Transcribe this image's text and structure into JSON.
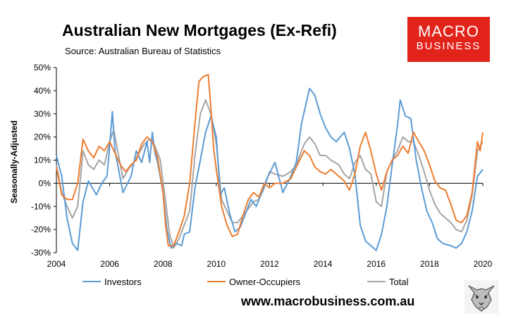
{
  "header": {
    "title": "Australian New Mortgages (Ex-Refi)",
    "source": "Source: Australian Bureau of Statistics",
    "logo_line1": "MACRO",
    "logo_line2": "BUSINESS",
    "url": "www.macrobusiness.com.au"
  },
  "colors": {
    "investors": "#5b9bd5",
    "owner_occupiers": "#ed7d31",
    "total": "#a5a5a5",
    "brand": "#e2231a"
  },
  "icons": [
    "wolf-logo-icon"
  ],
  "chart_data": {
    "type": "line",
    "title": "Australian New Mortgages (Ex-Refi)",
    "ylabel": "Seasonally-Adjusted",
    "xlabel": "",
    "xlim": [
      2004,
      2020
    ],
    "ylim": [
      -30,
      50
    ],
    "grid": false,
    "legend_position": "bottom",
    "x_ticks": [
      "2004",
      "2006",
      "2008",
      "2010",
      "2012",
      "2014",
      "2016",
      "2018",
      "2020"
    ],
    "y_ticks": [
      "-30%",
      "-20%",
      "-10%",
      "0%",
      "10%",
      "20%",
      "30%",
      "40%",
      "50%"
    ],
    "series": [
      {
        "name": "Investors",
        "points": [
          [
            2004.0,
            12
          ],
          [
            2004.2,
            3
          ],
          [
            2004.4,
            -15
          ],
          [
            2004.6,
            -26
          ],
          [
            2004.8,
            -29
          ],
          [
            2005.0,
            -8
          ],
          [
            2005.2,
            1
          ],
          [
            2005.5,
            -5
          ],
          [
            2005.7,
            0
          ],
          [
            2005.9,
            3
          ],
          [
            2006.0,
            16
          ],
          [
            2006.1,
            31
          ],
          [
            2006.2,
            14
          ],
          [
            2006.5,
            -4
          ],
          [
            2006.8,
            3
          ],
          [
            2007.0,
            14
          ],
          [
            2007.2,
            9
          ],
          [
            2007.4,
            18
          ],
          [
            2007.5,
            9
          ],
          [
            2007.6,
            22
          ],
          [
            2007.7,
            13
          ],
          [
            2007.8,
            9
          ],
          [
            2008.0,
            -4
          ],
          [
            2008.15,
            -20
          ],
          [
            2008.3,
            -28
          ],
          [
            2008.5,
            -26
          ],
          [
            2008.7,
            -27
          ],
          [
            2008.8,
            -22
          ],
          [
            2009.0,
            -21
          ],
          [
            2009.2,
            -2
          ],
          [
            2009.4,
            10
          ],
          [
            2009.6,
            22
          ],
          [
            2009.8,
            29
          ],
          [
            2010.0,
            20
          ],
          [
            2010.15,
            -5
          ],
          [
            2010.3,
            -2
          ],
          [
            2010.5,
            -13
          ],
          [
            2010.7,
            -21
          ],
          [
            2010.9,
            -19
          ],
          [
            2011.1,
            -13
          ],
          [
            2011.3,
            -7
          ],
          [
            2011.5,
            -10
          ],
          [
            2011.7,
            -4
          ],
          [
            2011.9,
            2
          ],
          [
            2012.2,
            9
          ],
          [
            2012.5,
            -4
          ],
          [
            2012.8,
            3
          ],
          [
            2013.0,
            9
          ],
          [
            2013.2,
            26
          ],
          [
            2013.4,
            36
          ],
          [
            2013.5,
            41
          ],
          [
            2013.7,
            38
          ],
          [
            2013.9,
            30
          ],
          [
            2014.1,
            24
          ],
          [
            2014.3,
            20
          ],
          [
            2014.5,
            18
          ],
          [
            2014.8,
            22
          ],
          [
            2015.0,
            15
          ],
          [
            2015.2,
            4
          ],
          [
            2015.4,
            -18
          ],
          [
            2015.6,
            -25
          ],
          [
            2015.8,
            -27
          ],
          [
            2016.0,
            -29
          ],
          [
            2016.2,
            -22
          ],
          [
            2016.4,
            -10
          ],
          [
            2016.6,
            8
          ],
          [
            2016.8,
            25
          ],
          [
            2016.9,
            36
          ],
          [
            2017.1,
            29
          ],
          [
            2017.3,
            28
          ],
          [
            2017.5,
            10
          ],
          [
            2017.7,
            -2
          ],
          [
            2017.9,
            -12
          ],
          [
            2018.1,
            -17
          ],
          [
            2018.3,
            -24
          ],
          [
            2018.5,
            -26
          ],
          [
            2018.8,
            -27
          ],
          [
            2019.0,
            -28
          ],
          [
            2019.2,
            -26
          ],
          [
            2019.4,
            -21
          ],
          [
            2019.6,
            -12
          ],
          [
            2019.8,
            3
          ],
          [
            2020.0,
            6
          ]
        ]
      },
      {
        "name": "Owner-Occupiers",
        "points": [
          [
            2004.0,
            7
          ],
          [
            2004.2,
            -5
          ],
          [
            2004.4,
            -7
          ],
          [
            2004.6,
            -7
          ],
          [
            2004.8,
            0
          ],
          [
            2005.0,
            19
          ],
          [
            2005.2,
            14
          ],
          [
            2005.4,
            11
          ],
          [
            2005.6,
            16
          ],
          [
            2005.8,
            14
          ],
          [
            2006.0,
            18
          ],
          [
            2006.2,
            13
          ],
          [
            2006.4,
            8
          ],
          [
            2006.6,
            5
          ],
          [
            2006.8,
            8
          ],
          [
            2007.0,
            10
          ],
          [
            2007.2,
            17
          ],
          [
            2007.4,
            20
          ],
          [
            2007.6,
            18
          ],
          [
            2007.8,
            11
          ],
          [
            2008.0,
            -4
          ],
          [
            2008.1,
            -18
          ],
          [
            2008.2,
            -27
          ],
          [
            2008.4,
            -27
          ],
          [
            2008.6,
            -21
          ],
          [
            2008.8,
            -14
          ],
          [
            2009.0,
            0
          ],
          [
            2009.2,
            26
          ],
          [
            2009.35,
            44
          ],
          [
            2009.5,
            46
          ],
          [
            2009.7,
            47
          ],
          [
            2009.8,
            32
          ],
          [
            2009.9,
            15
          ],
          [
            2010.0,
            6
          ],
          [
            2010.2,
            -10
          ],
          [
            2010.4,
            -18
          ],
          [
            2010.6,
            -23
          ],
          [
            2010.8,
            -22
          ],
          [
            2011.0,
            -14
          ],
          [
            2011.2,
            -7
          ],
          [
            2011.4,
            -4
          ],
          [
            2011.6,
            -6
          ],
          [
            2011.8,
            0
          ],
          [
            2012.0,
            -2
          ],
          [
            2012.2,
            0
          ],
          [
            2012.5,
            0
          ],
          [
            2012.8,
            2
          ],
          [
            2013.0,
            7
          ],
          [
            2013.3,
            14
          ],
          [
            2013.5,
            12
          ],
          [
            2013.7,
            7
          ],
          [
            2013.9,
            5
          ],
          [
            2014.1,
            4
          ],
          [
            2014.3,
            6
          ],
          [
            2014.6,
            3
          ],
          [
            2014.8,
            1
          ],
          [
            2015.0,
            -3
          ],
          [
            2015.2,
            4
          ],
          [
            2015.4,
            16
          ],
          [
            2015.6,
            22
          ],
          [
            2015.8,
            14
          ],
          [
            2016.0,
            4
          ],
          [
            2016.2,
            -3
          ],
          [
            2016.4,
            5
          ],
          [
            2016.6,
            10
          ],
          [
            2016.8,
            12
          ],
          [
            2017.0,
            16
          ],
          [
            2017.2,
            13
          ],
          [
            2017.4,
            22
          ],
          [
            2017.6,
            18
          ],
          [
            2017.8,
            14
          ],
          [
            2018.0,
            8
          ],
          [
            2018.2,
            1
          ],
          [
            2018.4,
            -2
          ],
          [
            2018.6,
            -3
          ],
          [
            2018.8,
            -9
          ],
          [
            2019.0,
            -16
          ],
          [
            2019.2,
            -17
          ],
          [
            2019.4,
            -14
          ],
          [
            2019.6,
            -4
          ],
          [
            2019.8,
            18
          ],
          [
            2019.9,
            14
          ],
          [
            2020.0,
            22
          ]
        ]
      },
      {
        "name": "Total",
        "points": [
          [
            2004.0,
            8
          ],
          [
            2004.2,
            -4
          ],
          [
            2004.4,
            -10
          ],
          [
            2004.6,
            -15
          ],
          [
            2004.8,
            -10
          ],
          [
            2005.0,
            14
          ],
          [
            2005.2,
            8
          ],
          [
            2005.4,
            6
          ],
          [
            2005.6,
            10
          ],
          [
            2005.8,
            8
          ],
          [
            2006.0,
            18
          ],
          [
            2006.15,
            23
          ],
          [
            2006.3,
            14
          ],
          [
            2006.5,
            2
          ],
          [
            2006.7,
            6
          ],
          [
            2006.9,
            9
          ],
          [
            2007.1,
            13
          ],
          [
            2007.3,
            17
          ],
          [
            2007.5,
            19
          ],
          [
            2007.7,
            16
          ],
          [
            2007.9,
            10
          ],
          [
            2008.1,
            -8
          ],
          [
            2008.25,
            -22
          ],
          [
            2008.4,
            -28
          ],
          [
            2008.6,
            -24
          ],
          [
            2008.8,
            -18
          ],
          [
            2009.0,
            -12
          ],
          [
            2009.2,
            12
          ],
          [
            2009.4,
            30
          ],
          [
            2009.6,
            36
          ],
          [
            2009.8,
            30
          ],
          [
            2010.0,
            17
          ],
          [
            2010.2,
            -7
          ],
          [
            2010.4,
            -12
          ],
          [
            2010.6,
            -17
          ],
          [
            2010.8,
            -17
          ],
          [
            2011.0,
            -14
          ],
          [
            2011.2,
            -11
          ],
          [
            2011.4,
            -8
          ],
          [
            2011.6,
            -7
          ],
          [
            2011.8,
            -2
          ],
          [
            2012.0,
            5
          ],
          [
            2012.2,
            4
          ],
          [
            2012.5,
            3
          ],
          [
            2012.8,
            5
          ],
          [
            2013.0,
            8
          ],
          [
            2013.3,
            17
          ],
          [
            2013.5,
            20
          ],
          [
            2013.7,
            17
          ],
          [
            2013.9,
            12
          ],
          [
            2014.1,
            12
          ],
          [
            2014.3,
            10
          ],
          [
            2014.6,
            8
          ],
          [
            2014.8,
            4
          ],
          [
            2015.0,
            2
          ],
          [
            2015.2,
            9
          ],
          [
            2015.4,
            12
          ],
          [
            2015.6,
            6
          ],
          [
            2015.8,
            4
          ],
          [
            2016.0,
            -8
          ],
          [
            2016.2,
            -10
          ],
          [
            2016.4,
            5
          ],
          [
            2016.6,
            10
          ],
          [
            2016.8,
            14
          ],
          [
            2017.0,
            20
          ],
          [
            2017.2,
            18
          ],
          [
            2017.4,
            18
          ],
          [
            2017.6,
            12
          ],
          [
            2017.8,
            5
          ],
          [
            2018.0,
            -3
          ],
          [
            2018.2,
            -9
          ],
          [
            2018.4,
            -13
          ],
          [
            2018.6,
            -15
          ],
          [
            2018.8,
            -17
          ],
          [
            2019.0,
            -20
          ],
          [
            2019.2,
            -21
          ],
          [
            2019.4,
            -16
          ],
          [
            2019.6,
            -5
          ],
          [
            2019.8,
            14
          ],
          [
            2020.0,
            18
          ]
        ]
      }
    ]
  }
}
